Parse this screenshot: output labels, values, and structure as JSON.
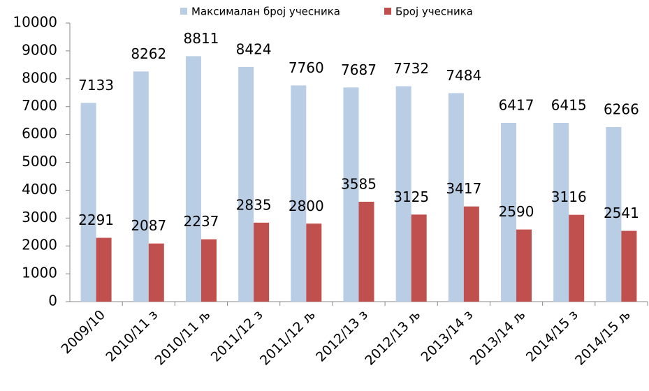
{
  "chart_data": {
    "type": "bar",
    "categories": [
      "2009/10",
      "2010/11 з",
      "2010/11 љ",
      "2011/12 з",
      "2011/12 љ",
      "2012/13 з",
      "2012/13 љ",
      "2013/14 з",
      "2013/14 љ",
      "2014/15 з",
      "2014/15 љ"
    ],
    "series": [
      {
        "name": "Максималан број учесника",
        "color": "#b9cde5",
        "values": [
          7133,
          8262,
          8811,
          8424,
          7760,
          7687,
          7732,
          7484,
          6417,
          6415,
          6266
        ]
      },
      {
        "name": "Број учесника",
        "color": "#c0504d",
        "values": [
          2291,
          2087,
          2237,
          2835,
          2800,
          3585,
          3125,
          3417,
          2590,
          3116,
          2541
        ]
      }
    ],
    "ylim": [
      0,
      10000
    ],
    "yticks": [
      0,
      1000,
      2000,
      3000,
      4000,
      5000,
      6000,
      7000,
      8000,
      9000,
      10000
    ],
    "grid": false,
    "legend": "top"
  }
}
